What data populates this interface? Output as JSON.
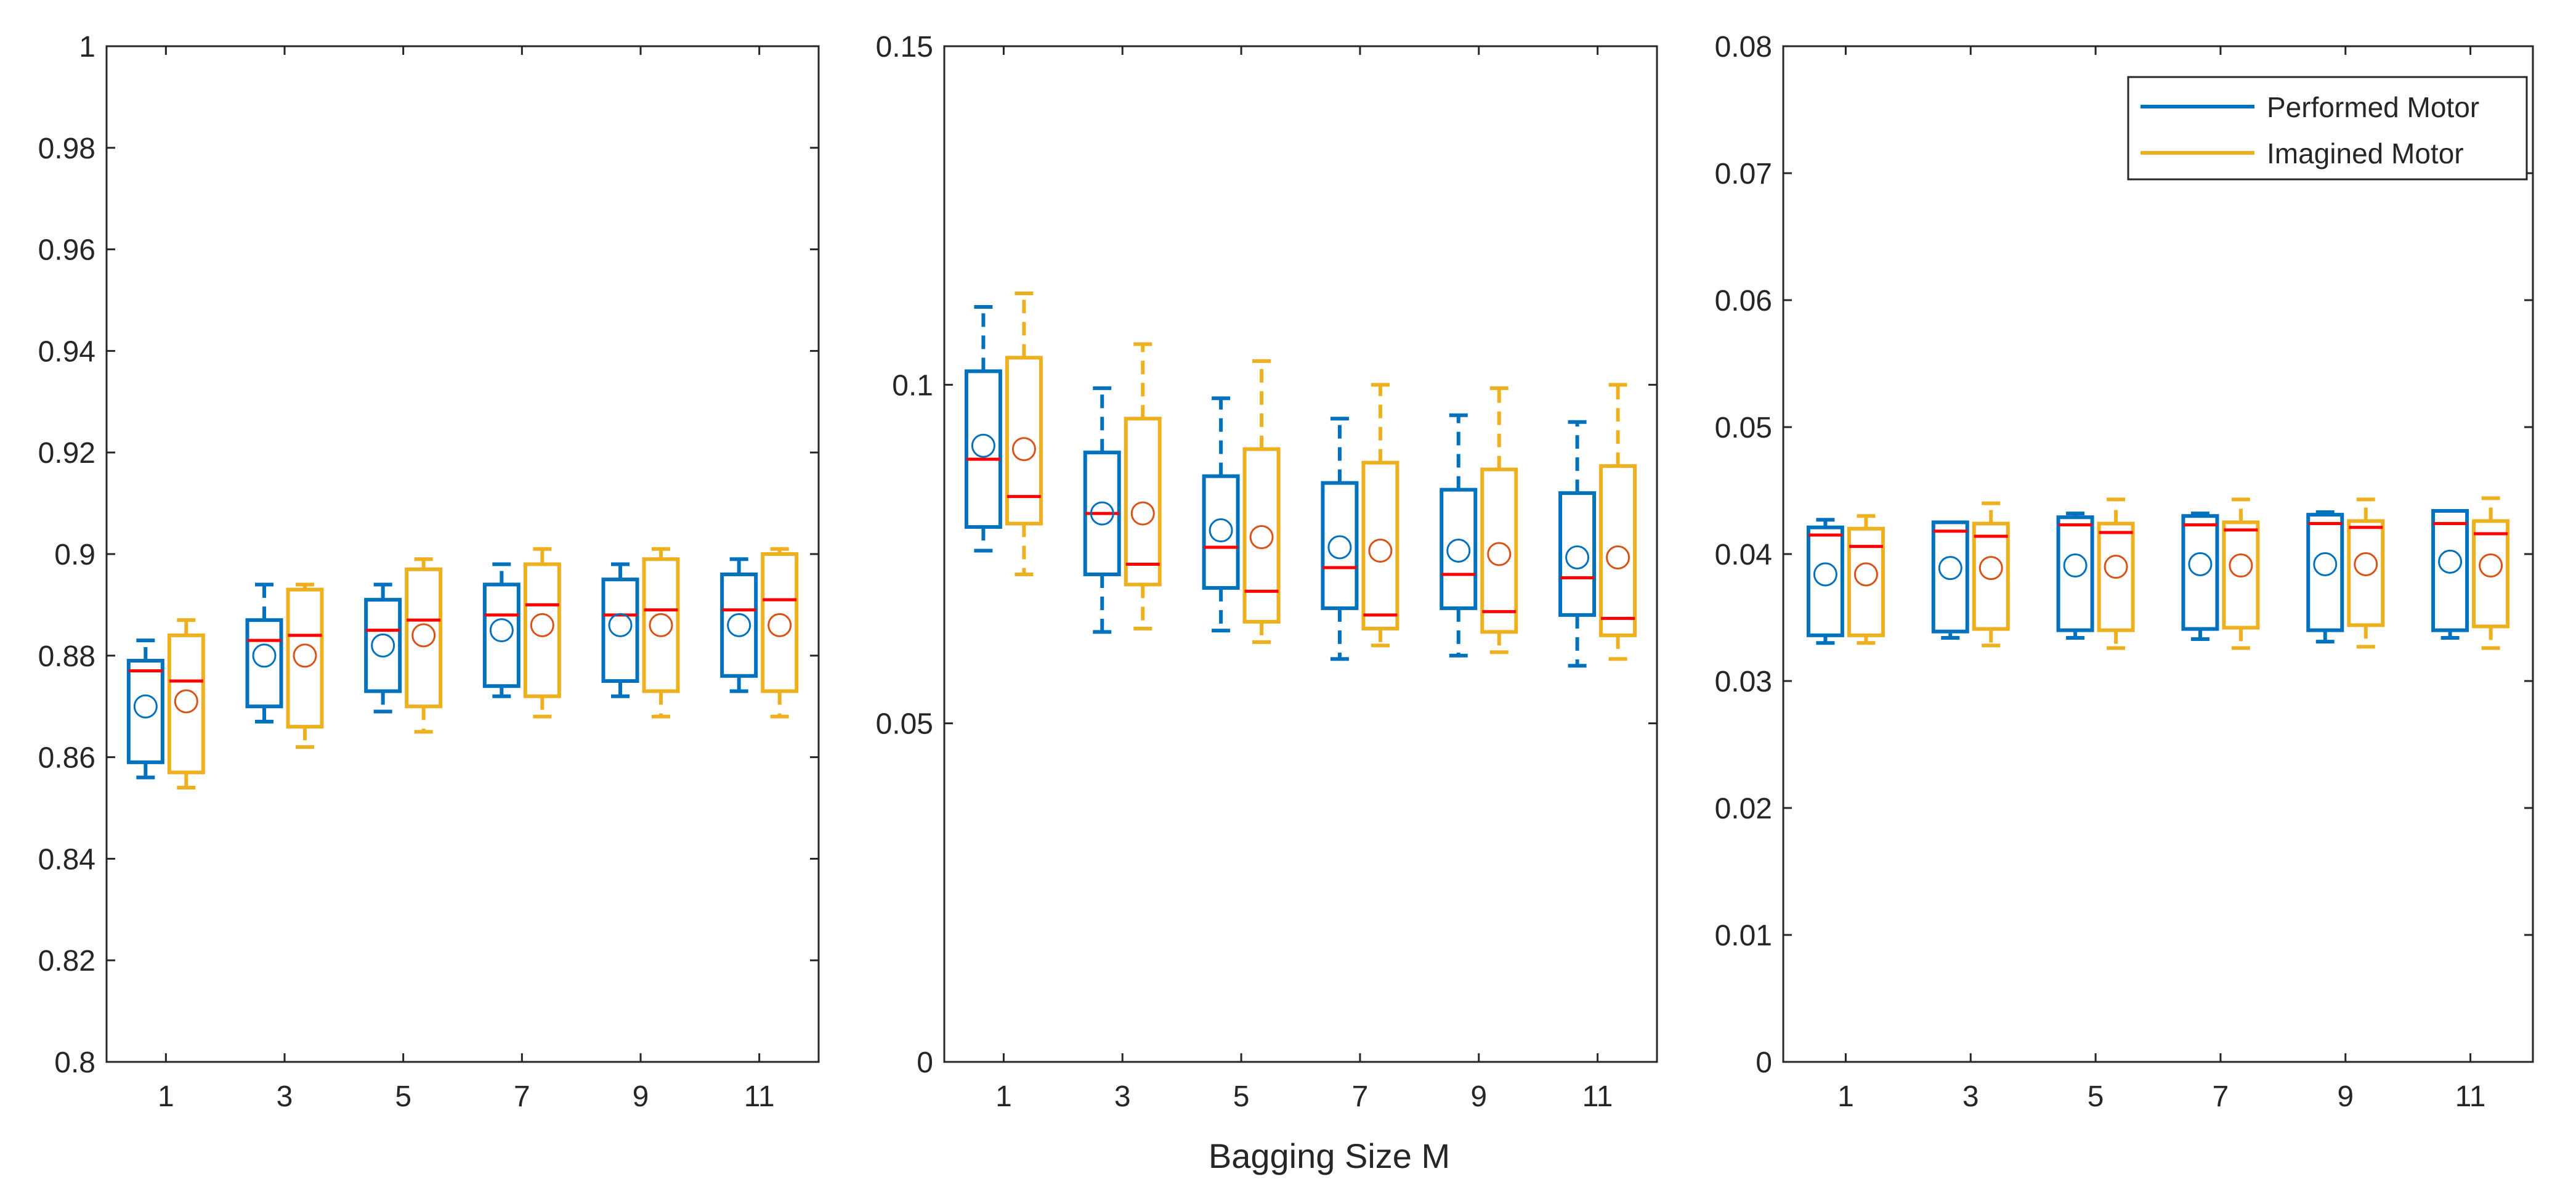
{
  "figure": {
    "xlabel": "Bagging Size M",
    "colors": {
      "performed": "#0072BD",
      "imagined": "#EDB120",
      "median": "#FF0000",
      "mean": "#D95319",
      "mean_performed": "#0072BD",
      "axis": "#262626"
    },
    "legend": {
      "placement": "top-right of panel 3",
      "entries": [
        "Performed Motor",
        "Imagined Motor"
      ]
    }
  },
  "chart_data": [
    {
      "type": "box",
      "title": "",
      "xlabel": "",
      "ylabel": "",
      "ylim": [
        0.8,
        1.0
      ],
      "yticks": [
        0.8,
        0.82,
        0.84,
        0.86,
        0.88,
        0.9,
        0.92,
        0.94,
        0.96,
        0.98,
        1
      ],
      "ytick_labels": [
        "0.8",
        "0.82",
        "0.84",
        "0.86",
        "0.88",
        "0.9",
        "0.92",
        "0.94",
        "0.96",
        "0.98",
        "1"
      ],
      "categories": [
        "1",
        "3",
        "5",
        "7",
        "9",
        "11"
      ],
      "series": [
        {
          "name": "Performed Motor",
          "whisker_low": [
            0.856,
            0.867,
            0.869,
            0.872,
            0.872,
            0.873
          ],
          "q1": [
            0.859,
            0.87,
            0.873,
            0.874,
            0.875,
            0.876
          ],
          "median": [
            0.877,
            0.883,
            0.885,
            0.888,
            0.888,
            0.889
          ],
          "q3": [
            0.879,
            0.887,
            0.891,
            0.894,
            0.895,
            0.896
          ],
          "whisker_high": [
            0.883,
            0.894,
            0.894,
            0.898,
            0.898,
            0.899
          ],
          "mean": [
            0.87,
            0.88,
            0.882,
            0.885,
            0.886,
            0.886
          ]
        },
        {
          "name": "Imagined Motor",
          "whisker_low": [
            0.854,
            0.862,
            0.865,
            0.868,
            0.868,
            0.868
          ],
          "q1": [
            0.857,
            0.866,
            0.87,
            0.872,
            0.873,
            0.873
          ],
          "median": [
            0.875,
            0.884,
            0.887,
            0.89,
            0.889,
            0.891
          ],
          "q3": [
            0.884,
            0.893,
            0.897,
            0.898,
            0.899,
            0.9
          ],
          "whisker_high": [
            0.887,
            0.894,
            0.899,
            0.901,
            0.901,
            0.901
          ],
          "mean": [
            0.871,
            0.88,
            0.884,
            0.886,
            0.886,
            0.886
          ]
        }
      ]
    },
    {
      "type": "box",
      "title": "",
      "xlabel": "Bagging Size M",
      "ylabel": "",
      "ylim": [
        0,
        0.15
      ],
      "yticks": [
        0,
        0.05,
        0.1,
        0.15
      ],
      "ytick_labels": [
        "0",
        "0.05",
        "0.1",
        "0.15"
      ],
      "categories": [
        "1",
        "3",
        "5",
        "7",
        "9",
        "11"
      ],
      "series": [
        {
          "name": "Performed Motor",
          "whisker_low": [
            0.0755,
            0.0635,
            0.0637,
            0.0595,
            0.06,
            0.0585
          ],
          "q1": [
            0.079,
            0.072,
            0.07,
            0.067,
            0.067,
            0.066
          ],
          "median": [
            0.089,
            0.081,
            0.076,
            0.073,
            0.072,
            0.0715
          ],
          "q3": [
            0.102,
            0.09,
            0.0865,
            0.0855,
            0.0845,
            0.084
          ],
          "whisker_high": [
            0.1115,
            0.0995,
            0.098,
            0.095,
            0.0955,
            0.0945
          ],
          "mean": [
            0.091,
            0.081,
            0.0785,
            0.076,
            0.0755,
            0.0745
          ]
        },
        {
          "name": "Imagined Motor",
          "whisker_low": [
            0.072,
            0.064,
            0.062,
            0.0615,
            0.0605,
            0.0595
          ],
          "q1": [
            0.0795,
            0.0705,
            0.065,
            0.064,
            0.0635,
            0.063
          ],
          "median": [
            0.0835,
            0.0735,
            0.0695,
            0.066,
            0.0665,
            0.0655
          ],
          "q3": [
            0.104,
            0.095,
            0.0905,
            0.0885,
            0.0875,
            0.088
          ],
          "whisker_high": [
            0.1135,
            0.106,
            0.1035,
            0.1,
            0.0995,
            0.1
          ],
          "mean": [
            0.0905,
            0.081,
            0.0775,
            0.0755,
            0.075,
            0.0745
          ]
        }
      ]
    },
    {
      "type": "box",
      "title": "",
      "xlabel": "",
      "ylabel": "",
      "ylim": [
        0,
        0.08
      ],
      "yticks": [
        0,
        0.01,
        0.02,
        0.03,
        0.04,
        0.05,
        0.06,
        0.07,
        0.08
      ],
      "ytick_labels": [
        "0",
        "0.01",
        "0.02",
        "0.03",
        "0.04",
        "0.05",
        "0.06",
        "0.07",
        "0.08"
      ],
      "categories": [
        "1",
        "3",
        "5",
        "7",
        "9",
        "11"
      ],
      "legend": [
        "Performed Motor",
        "Imagined Motor"
      ],
      "series": [
        {
          "name": "Performed Motor",
          "whisker_low": [
            0.033,
            0.0334,
            0.0334,
            0.0333,
            0.0331,
            0.0334
          ],
          "q1": [
            0.0336,
            0.0339,
            0.034,
            0.0341,
            0.034,
            0.034
          ],
          "median": [
            0.0415,
            0.0418,
            0.0423,
            0.0423,
            0.0424,
            0.0424
          ],
          "q3": [
            0.0421,
            0.0425,
            0.0429,
            0.043,
            0.0431,
            0.0434
          ],
          "whisker_high": [
            0.0427,
            0.0425,
            0.0432,
            0.0432,
            0.0433,
            0.0434
          ],
          "mean": [
            0.0384,
            0.0389,
            0.0391,
            0.0392,
            0.0392,
            0.0394
          ]
        },
        {
          "name": "Imagined Motor",
          "whisker_low": [
            0.033,
            0.0328,
            0.0326,
            0.0326,
            0.0327,
            0.0326
          ],
          "q1": [
            0.0336,
            0.0341,
            0.034,
            0.0342,
            0.0344,
            0.0343
          ],
          "median": [
            0.0406,
            0.0414,
            0.0417,
            0.0419,
            0.0421,
            0.0416
          ],
          "q3": [
            0.042,
            0.0424,
            0.0424,
            0.0425,
            0.0426,
            0.0426
          ],
          "whisker_high": [
            0.043,
            0.044,
            0.0443,
            0.0443,
            0.0443,
            0.0444
          ],
          "mean": [
            0.0384,
            0.0389,
            0.039,
            0.0391,
            0.0392,
            0.0391
          ]
        }
      ]
    }
  ]
}
